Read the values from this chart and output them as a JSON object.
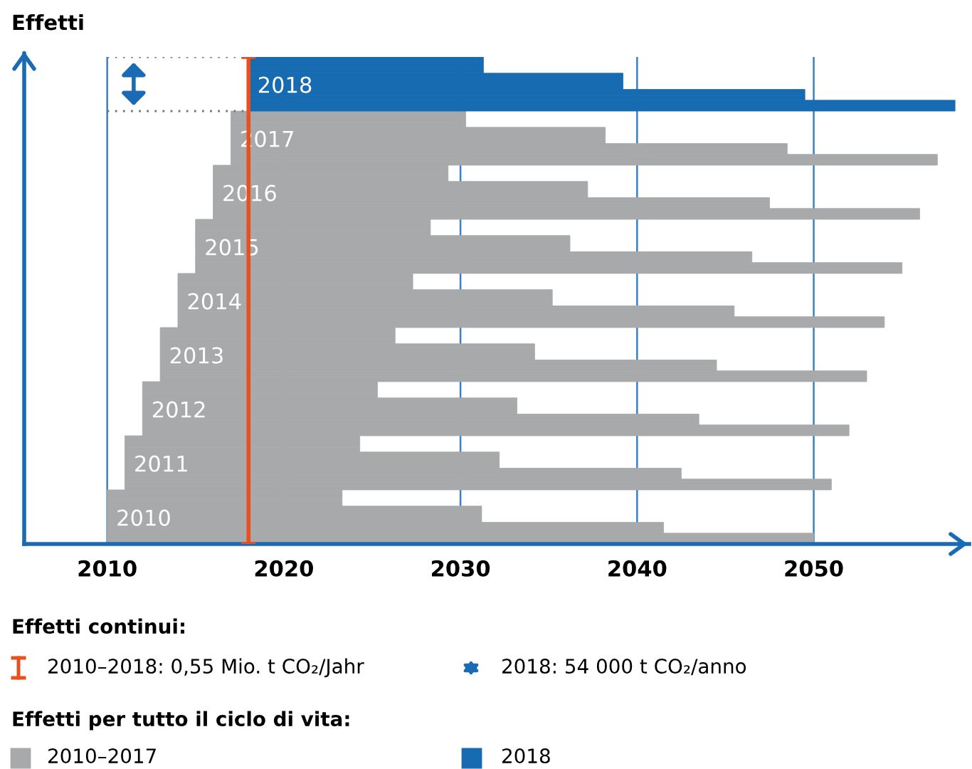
{
  "chart_data": {
    "type": "bar",
    "orientation": "horizontal",
    "ylabel": "Effetti",
    "xlim": [
      2005.3,
      2058.8
    ],
    "xticks": [
      2010,
      2020,
      2030,
      2040,
      2050
    ],
    "grid": "x",
    "categories": [
      null,
      null,
      null,
      null,
      null,
      null,
      null,
      null,
      null,
      null,
      null,
      null,
      null,
      null,
      null,
      null,
      null,
      null,
      null,
      null,
      null,
      null,
      null,
      null,
      null,
      null,
      null,
      null,
      null,
      null,
      null,
      null,
      null,
      null,
      null,
      null,
      null,
      null,
      null,
      null,
      null,
      null,
      null,
      null,
      null,
      null,
      null,
      null,
      null,
      null,
      null,
      null,
      null,
      null,
      null,
      null,
      null,
      null,
      null,
      null,
      null,
      null,
      null,
      null,
      null,
      null,
      null,
      null,
      null,
      null,
      null,
      null,
      null,
      null,
      null,
      null,
      null,
      null,
      null,
      null,
      null,
      null,
      null,
      null,
      null,
      null,
      null,
      null,
      null,
      null
    ],
    "series": [
      {
        "name": "2010",
        "color": "#a7a9aa",
        "values": [
          null,
          null,
          null,
          null,
          null,
          null,
          null,
          null,
          null,
          null,
          null,
          null,
          null,
          null,
          null,
          null,
          null,
          null,
          null,
          null,
          null,
          null,
          null,
          null,
          null,
          null,
          null,
          null,
          null,
          null,
          null,
          null,
          null,
          null,
          null,
          null,
          null,
          null,
          null,
          null,
          null,
          null,
          null,
          null,
          null,
          null,
          null,
          null,
          null,
          null,
          null,
          null,
          null,
          null,
          null,
          null,
          null,
          null,
          null,
          null,
          null,
          null,
          null,
          null,
          null,
          null,
          null,
          null,
          null,
          null,
          null,
          null,
          null,
          null,
          null,
          null,
          null,
          null,
          null,
          null,
          13.3,
          13.3,
          13.3,
          21.2,
          21.2,
          21.2,
          31.5,
          31.5,
          40,
          40
        ],
        "base": [
          null,
          null,
          null,
          null,
          null,
          null,
          null,
          null,
          null,
          null,
          null,
          null,
          null,
          null,
          null,
          null,
          null,
          null,
          null,
          null,
          null,
          null,
          null,
          null,
          null,
          null,
          null,
          null,
          null,
          null,
          null,
          null,
          null,
          null,
          null,
          null,
          null,
          null,
          null,
          null,
          null,
          null,
          null,
          null,
          null,
          null,
          null,
          null,
          null,
          null,
          null,
          null,
          null,
          null,
          null,
          null,
          null,
          null,
          null,
          null,
          null,
          null,
          null,
          null,
          null,
          null,
          null,
          null,
          null,
          null,
          null,
          null,
          null,
          null,
          null,
          null,
          null,
          null,
          null,
          null,
          2010,
          2010,
          2010,
          2010,
          2010,
          2010,
          2010,
          2010,
          2010,
          2010
        ]
      },
      {
        "name": "2011",
        "color": "#a7a9aa",
        "values": [
          null,
          null,
          null,
          null,
          null,
          null,
          null,
          null,
          null,
          null,
          null,
          null,
          null,
          null,
          null,
          null,
          null,
          null,
          null,
          null,
          null,
          null,
          null,
          null,
          null,
          null,
          null,
          null,
          null,
          null,
          null,
          null,
          null,
          null,
          null,
          null,
          null,
          null,
          null,
          null,
          null,
          null,
          null,
          null,
          null,
          null,
          null,
          null,
          null,
          null,
          null,
          null,
          null,
          null,
          null,
          null,
          null,
          null,
          null,
          null,
          null,
          null,
          null,
          null,
          null,
          null,
          null,
          null,
          null,
          null,
          13.3,
          13.3,
          13.3,
          21.2,
          21.2,
          21.2,
          31.5,
          31.5,
          40,
          40,
          null,
          null,
          null,
          null,
          null,
          null,
          null,
          null,
          null,
          null
        ],
        "base": [
          null,
          null,
          null,
          null,
          null,
          null,
          null,
          null,
          null,
          null,
          null,
          null,
          null,
          null,
          null,
          null,
          null,
          null,
          null,
          null,
          null,
          null,
          null,
          null,
          null,
          null,
          null,
          null,
          null,
          null,
          null,
          null,
          null,
          null,
          null,
          null,
          null,
          null,
          null,
          null,
          null,
          null,
          null,
          null,
          null,
          null,
          null,
          null,
          null,
          null,
          null,
          null,
          null,
          null,
          null,
          null,
          null,
          null,
          null,
          null,
          null,
          null,
          null,
          null,
          null,
          null,
          null,
          null,
          null,
          null,
          2011,
          2011,
          2011,
          2011,
          2011,
          2011,
          2011,
          2011,
          2011,
          2011,
          null,
          null,
          null,
          null,
          null,
          null,
          null,
          null,
          null,
          null
        ]
      },
      {
        "name": "2012",
        "color": "#a7a9aa",
        "values": [
          null,
          null,
          null,
          null,
          null,
          null,
          null,
          null,
          null,
          null,
          null,
          null,
          null,
          null,
          null,
          null,
          null,
          null,
          null,
          null,
          null,
          null,
          null,
          null,
          null,
          null,
          null,
          null,
          null,
          null,
          null,
          null,
          null,
          null,
          null,
          null,
          null,
          null,
          null,
          null,
          null,
          null,
          null,
          null,
          null,
          null,
          null,
          null,
          null,
          null,
          null,
          null,
          null,
          null,
          null,
          null,
          null,
          null,
          null,
          null,
          13.3,
          13.3,
          13.3,
          21.2,
          21.2,
          21.2,
          31.5,
          31.5,
          40,
          40,
          null,
          null,
          null,
          null,
          null,
          null,
          null,
          null,
          null,
          null,
          null,
          null,
          null,
          null,
          null,
          null,
          null,
          null,
          null,
          null
        ],
        "base": [
          null,
          null,
          null,
          null,
          null,
          null,
          null,
          null,
          null,
          null,
          null,
          null,
          null,
          null,
          null,
          null,
          null,
          null,
          null,
          null,
          null,
          null,
          null,
          null,
          null,
          null,
          null,
          null,
          null,
          null,
          null,
          null,
          null,
          null,
          null,
          null,
          null,
          null,
          null,
          null,
          null,
          null,
          null,
          null,
          null,
          null,
          null,
          null,
          null,
          null,
          null,
          null,
          null,
          null,
          null,
          null,
          null,
          null,
          null,
          null,
          2012,
          2012,
          2012,
          2012,
          2012,
          2012,
          2012,
          2012,
          2012,
          2012,
          null,
          null,
          null,
          null,
          null,
          null,
          null,
          null,
          null,
          null,
          null,
          null,
          null,
          null,
          null,
          null,
          null,
          null,
          null,
          null
        ]
      },
      {
        "name": "2013",
        "color": "#a7a9aa",
        "values": [
          null,
          null,
          null,
          null,
          null,
          null,
          null,
          null,
          null,
          null,
          null,
          null,
          null,
          null,
          null,
          null,
          null,
          null,
          null,
          null,
          null,
          null,
          null,
          null,
          null,
          null,
          null,
          null,
          null,
          null,
          null,
          null,
          null,
          null,
          null,
          null,
          null,
          null,
          null,
          null,
          null,
          null,
          null,
          null,
          null,
          null,
          null,
          null,
          null,
          null,
          13.3,
          13.3,
          13.3,
          21.2,
          21.2,
          21.2,
          31.5,
          31.5,
          40,
          40,
          null,
          null,
          null,
          null,
          null,
          null,
          null,
          null,
          null,
          null,
          null,
          null,
          null,
          null,
          null,
          null,
          null,
          null,
          null,
          null,
          null,
          null,
          null,
          null,
          null,
          null,
          null,
          null,
          null,
          null
        ],
        "base": [
          null,
          null,
          null,
          null,
          null,
          null,
          null,
          null,
          null,
          null,
          null,
          null,
          null,
          null,
          null,
          null,
          null,
          null,
          null,
          null,
          null,
          null,
          null,
          null,
          null,
          null,
          null,
          null,
          null,
          null,
          null,
          null,
          null,
          null,
          null,
          null,
          null,
          null,
          null,
          null,
          null,
          null,
          null,
          null,
          null,
          null,
          null,
          null,
          null,
          null,
          2013,
          2013,
          2013,
          2013,
          2013,
          2013,
          2013,
          2013,
          2013,
          2013,
          null,
          null,
          null,
          null,
          null,
          null,
          null,
          null,
          null,
          null,
          null,
          null,
          null,
          null,
          null,
          null,
          null,
          null,
          null,
          null,
          null,
          null,
          null,
          null,
          null,
          null,
          null,
          null,
          null,
          null
        ]
      },
      {
        "name": "2014",
        "color": "#a7a9aa",
        "values": [
          null,
          null,
          null,
          null,
          null,
          null,
          null,
          null,
          null,
          null,
          null,
          null,
          null,
          null,
          null,
          null,
          null,
          null,
          null,
          null,
          null,
          null,
          null,
          null,
          null,
          null,
          null,
          null,
          null,
          null,
          null,
          null,
          null,
          null,
          null,
          null,
          null,
          null,
          null,
          null,
          13.3,
          13.3,
          13.3,
          21.2,
          21.2,
          21.2,
          31.5,
          31.5,
          40,
          40,
          null,
          null,
          null,
          null,
          null,
          null,
          null,
          null,
          null,
          null,
          null,
          null,
          null,
          null,
          null,
          null,
          null,
          null,
          null,
          null,
          null,
          null,
          null,
          null,
          null,
          null,
          null,
          null,
          null,
          null,
          null,
          null,
          null,
          null,
          null,
          null,
          null,
          null,
          null,
          null
        ],
        "base": [
          null,
          null,
          null,
          null,
          null,
          null,
          null,
          null,
          null,
          null,
          null,
          null,
          null,
          null,
          null,
          null,
          null,
          null,
          null,
          null,
          null,
          null,
          null,
          null,
          null,
          null,
          null,
          null,
          null,
          null,
          null,
          null,
          null,
          null,
          null,
          null,
          null,
          null,
          null,
          null,
          2014,
          2014,
          2014,
          2014,
          2014,
          2014,
          2014,
          2014,
          2014,
          2014,
          null,
          null,
          null,
          null,
          null,
          null,
          null,
          null,
          null,
          null,
          null,
          null,
          null,
          null,
          null,
          null,
          null,
          null,
          null,
          null,
          null,
          null,
          null,
          null,
          null,
          null,
          null,
          null,
          null,
          null,
          null,
          null,
          null,
          null,
          null,
          null,
          null,
          null,
          null,
          null
        ]
      },
      {
        "name": "2015",
        "color": "#a7a9aa",
        "values": [
          null,
          null,
          null,
          null,
          null,
          null,
          null,
          null,
          null,
          null,
          null,
          null,
          null,
          null,
          null,
          null,
          null,
          null,
          null,
          null,
          null,
          null,
          null,
          null,
          null,
          null,
          null,
          null,
          null,
          null,
          13.3,
          13.3,
          13.3,
          21.2,
          21.2,
          21.2,
          31.5,
          31.5,
          40,
          40,
          null,
          null,
          null,
          null,
          null,
          null,
          null,
          null,
          null,
          null,
          null,
          null,
          null,
          null,
          null,
          null,
          null,
          null,
          null,
          null,
          null,
          null,
          null,
          null,
          null,
          null,
          null,
          null,
          null,
          null,
          null,
          null,
          null,
          null,
          null,
          null,
          null,
          null,
          null,
          null,
          null,
          null,
          null,
          null,
          null,
          null,
          null,
          null,
          null,
          null
        ],
        "base": [
          null,
          null,
          null,
          null,
          null,
          null,
          null,
          null,
          null,
          null,
          null,
          null,
          null,
          null,
          null,
          null,
          null,
          null,
          null,
          null,
          null,
          null,
          null,
          null,
          null,
          null,
          null,
          null,
          null,
          null,
          2015,
          2015,
          2015,
          2015,
          2015,
          2015,
          2015,
          2015,
          2015,
          2015,
          null,
          null,
          null,
          null,
          null,
          null,
          null,
          null,
          null,
          null,
          null,
          null,
          null,
          null,
          null,
          null,
          null,
          null,
          null,
          null,
          null,
          null,
          null,
          null,
          null,
          null,
          null,
          null,
          null,
          null,
          null,
          null,
          null,
          null,
          null,
          null,
          null,
          null,
          null,
          null,
          null,
          null,
          null,
          null,
          null,
          null,
          null,
          null,
          null,
          null
        ]
      },
      {
        "name": "2016",
        "color": "#a7a9aa",
        "values": [
          null,
          null,
          null,
          null,
          null,
          null,
          null,
          null,
          null,
          null,
          null,
          null,
          null,
          null,
          null,
          null,
          null,
          null,
          null,
          null,
          13.3,
          13.3,
          13.3,
          21.2,
          21.2,
          21.2,
          31.5,
          31.5,
          40,
          40,
          null,
          null,
          null,
          null,
          null,
          null,
          null,
          null,
          null,
          null,
          null,
          null,
          null,
          null,
          null,
          null,
          null,
          null,
          null,
          null,
          null,
          null,
          null,
          null,
          null,
          null,
          null,
          null,
          null,
          null,
          null,
          null,
          null,
          null,
          null,
          null,
          null,
          null,
          null,
          null,
          null,
          null,
          null,
          null,
          null,
          null,
          null,
          null,
          null,
          null,
          null,
          null,
          null,
          null,
          null,
          null,
          null,
          null,
          null,
          null
        ],
        "base": [
          null,
          null,
          null,
          null,
          null,
          null,
          null,
          null,
          null,
          null,
          null,
          null,
          null,
          null,
          null,
          null,
          null,
          null,
          null,
          null,
          2016,
          2016,
          2016,
          2016,
          2016,
          2016,
          2016,
          2016,
          2016,
          2016,
          null,
          null,
          null,
          null,
          null,
          null,
          null,
          null,
          null,
          null,
          null,
          null,
          null,
          null,
          null,
          null,
          null,
          null,
          null,
          null,
          null,
          null,
          null,
          null,
          null,
          null,
          null,
          null,
          null,
          null,
          null,
          null,
          null,
          null,
          null,
          null,
          null,
          null,
          null,
          null,
          null,
          null,
          null,
          null,
          null,
          null,
          null,
          null,
          null,
          null,
          null,
          null,
          null,
          null,
          null,
          null,
          null,
          null,
          null,
          null
        ]
      },
      {
        "name": "2017",
        "color": "#a7a9aa",
        "values": [
          null,
          null,
          null,
          null,
          null,
          null,
          null,
          null,
          null,
          null,
          13.3,
          13.3,
          13.3,
          21.2,
          21.2,
          21.2,
          31.5,
          31.5,
          40,
          40,
          null,
          null,
          null,
          null,
          null,
          null,
          null,
          null,
          null,
          null,
          null,
          null,
          null,
          null,
          null,
          null,
          null,
          null,
          null,
          null,
          null,
          null,
          null,
          null,
          null,
          null,
          null,
          null,
          null,
          null,
          null,
          null,
          null,
          null,
          null,
          null,
          null,
          null,
          null,
          null,
          null,
          null,
          null,
          null,
          null,
          null,
          null,
          null,
          null,
          null,
          null,
          null,
          null,
          null,
          null,
          null,
          null,
          null,
          null,
          null,
          null,
          null,
          null,
          null,
          null,
          null,
          null,
          null,
          null,
          null
        ],
        "base": [
          null,
          null,
          null,
          null,
          null,
          null,
          null,
          null,
          null,
          null,
          2017,
          2017,
          2017,
          2017,
          2017,
          2017,
          2017,
          2017,
          2017,
          2017,
          null,
          null,
          null,
          null,
          null,
          null,
          null,
          null,
          null,
          null,
          null,
          null,
          null,
          null,
          null,
          null,
          null,
          null,
          null,
          null,
          null,
          null,
          null,
          null,
          null,
          null,
          null,
          null,
          null,
          null,
          null,
          null,
          null,
          null,
          null,
          null,
          null,
          null,
          null,
          null,
          null,
          null,
          null,
          null,
          null,
          null,
          null,
          null,
          null,
          null,
          null,
          null,
          null,
          null,
          null,
          null,
          null,
          null,
          null,
          null,
          null,
          null,
          null,
          null,
          null,
          null,
          null,
          null,
          null,
          null
        ]
      },
      {
        "name": "2018",
        "color": "#166bb1",
        "values": [
          13.3,
          13.3,
          13.3,
          21.2,
          21.2,
          21.2,
          31.5,
          31.5,
          40,
          40,
          null,
          null,
          null,
          null,
          null,
          null,
          null,
          null,
          null,
          null,
          null,
          null,
          null,
          null,
          null,
          null,
          null,
          null,
          null,
          null,
          null,
          null,
          null,
          null,
          null,
          null,
          null,
          null,
          null,
          null,
          null,
          null,
          null,
          null,
          null,
          null,
          null,
          null,
          null,
          null,
          null,
          null,
          null,
          null,
          null,
          null,
          null,
          null,
          null,
          null,
          null,
          null,
          null,
          null,
          null,
          null,
          null,
          null,
          null,
          null,
          null,
          null,
          null,
          null,
          null,
          null,
          null,
          null,
          null,
          null,
          null,
          null,
          null,
          null,
          null,
          null,
          null,
          null,
          null,
          null
        ],
        "base": [
          2018,
          2018,
          2018,
          2018,
          2018,
          2018,
          2018,
          2018,
          2018,
          2018,
          null,
          null,
          null,
          null,
          null,
          null,
          null,
          null,
          null,
          null,
          null,
          null,
          null,
          null,
          null,
          null,
          null,
          null,
          null,
          null,
          null,
          null,
          null,
          null,
          null,
          null,
          null,
          null,
          null,
          null,
          null,
          null,
          null,
          null,
          null,
          null,
          null,
          null,
          null,
          null,
          null,
          null,
          null,
          null,
          null,
          null,
          null,
          null,
          null,
          null,
          null,
          null,
          null,
          null,
          null,
          null,
          null,
          null,
          null,
          null,
          null,
          null,
          null,
          null,
          null,
          null,
          null,
          null,
          null,
          null,
          null,
          null,
          null,
          null,
          null,
          null,
          null,
          null,
          null,
          null
        ]
      }
    ],
    "ref_lines": [
      {
        "axis": "x",
        "value": 2018,
        "color": "#e8501e"
      }
    ],
    "annotations": [
      "Effetti continui:",
      "2010–2018: 0,55 Mio. t CO₂/Jahr",
      "2018: 54 000 t CO₂/anno",
      "Effetti per tutto il ciclo di vita:",
      "2010–2017",
      "2018"
    ]
  }
}
